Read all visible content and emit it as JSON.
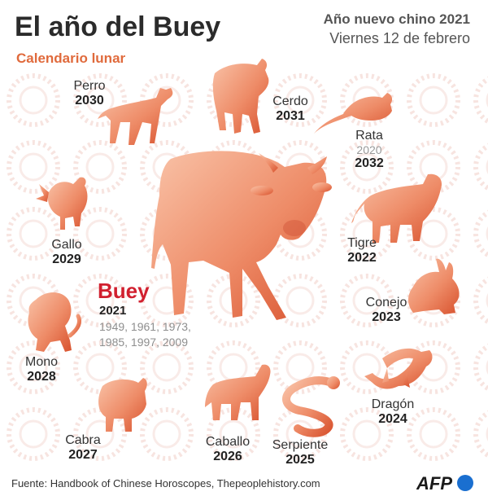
{
  "title": "El año del Buey",
  "subtitle": "Calendario lunar",
  "header": {
    "line1": "Año nuevo chino 2021",
    "line2": "Viernes 12 de febrero"
  },
  "featured": {
    "name": "Buey",
    "year": "2021",
    "past_years": "1949, 1961, 1973, 1985, 1997, 2009"
  },
  "animals": [
    {
      "id": "perro",
      "name": "Perro",
      "year": "2030",
      "icon": "dog-icon"
    },
    {
      "id": "cerdo",
      "name": "Cerdo",
      "year": "2031",
      "icon": "pig-icon"
    },
    {
      "id": "rata",
      "name": "Rata",
      "year": "2032",
      "past": "2020",
      "icon": "rat-icon"
    },
    {
      "id": "tigre",
      "name": "Tigre",
      "year": "2022",
      "icon": "tiger-icon"
    },
    {
      "id": "conejo",
      "name": "Conejo",
      "year": "2023",
      "icon": "rabbit-icon"
    },
    {
      "id": "dragon",
      "name": "Dragón",
      "year": "2024",
      "icon": "dragon-icon"
    },
    {
      "id": "serpiente",
      "name": "Serpiente",
      "year": "2025",
      "icon": "snake-icon"
    },
    {
      "id": "caballo",
      "name": "Caballo",
      "year": "2026",
      "icon": "horse-icon"
    },
    {
      "id": "cabra",
      "name": "Cabra",
      "year": "2027",
      "icon": "goat-icon"
    },
    {
      "id": "mono",
      "name": "Mono",
      "year": "2028",
      "icon": "monkey-icon"
    },
    {
      "id": "gallo",
      "name": "Gallo",
      "year": "2029",
      "icon": "rooster-icon"
    }
  ],
  "footer": {
    "source": "Fuente: Handbook of Chinese Horoscopes, Thepeoplehistory.com",
    "logo": "AFP"
  },
  "colors": {
    "accent": "#e06a3c",
    "animal_light": "#f6b295",
    "animal_dark": "#d8522e",
    "featured_name": "#d1202f",
    "logo_dot": "#1a6fd0"
  }
}
